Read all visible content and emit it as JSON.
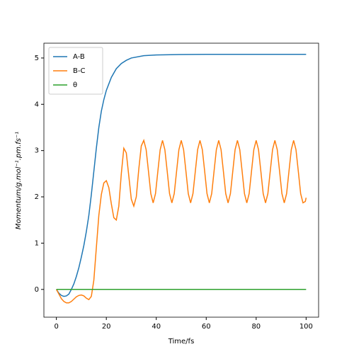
{
  "chart_data": {
    "type": "line",
    "xlabel": "Time/fs",
    "ylabel": "Momentum/g.mol⁻¹.pm.fs⁻¹",
    "xlim": [
      -5,
      105
    ],
    "xticks": [
      0,
      20,
      40,
      60,
      80,
      100
    ],
    "ylim": [
      -0.6,
      5.32
    ],
    "yticks": [
      0,
      1,
      2,
      3,
      4,
      5
    ],
    "legend": "upper left",
    "series": [
      {
        "name": "A-B",
        "color": "#1f77b4",
        "x": [
          0,
          1,
          2,
          3,
          4,
          5,
          6,
          7,
          8,
          9,
          10,
          11,
          12,
          13,
          14,
          15,
          16,
          17,
          18,
          19,
          20,
          22,
          24,
          26,
          28,
          30,
          35,
          40,
          50,
          60,
          100
        ],
        "values": [
          0,
          -0.08,
          -0.13,
          -0.15,
          -0.14,
          -0.1,
          0.0,
          0.12,
          0.28,
          0.47,
          0.7,
          0.95,
          1.25,
          1.6,
          2.05,
          2.55,
          3.05,
          3.5,
          3.85,
          4.1,
          4.3,
          4.58,
          4.77,
          4.88,
          4.95,
          5.0,
          5.05,
          5.065,
          5.075,
          5.08,
          5.08
        ]
      },
      {
        "name": "B-C",
        "color": "#ff7f0e",
        "x": [
          0,
          1,
          2,
          3,
          4,
          5,
          6,
          7,
          8,
          9,
          10,
          11,
          12,
          13,
          14,
          15,
          16,
          17,
          18,
          19,
          20,
          21,
          22,
          23,
          24,
          25,
          26,
          27,
          28,
          29,
          30,
          31,
          32,
          33,
          34,
          35,
          35.94,
          36.88,
          37.81,
          38.75,
          39.69,
          40.63,
          41.56,
          42.5,
          43.44,
          44.38,
          45.31,
          46.25,
          47.19,
          48.13,
          49.06,
          50,
          50.94,
          51.88,
          52.81,
          53.75,
          54.69,
          55.63,
          56.56,
          57.5,
          58.44,
          59.38,
          60.31,
          61.25,
          62.19,
          63.13,
          64.06,
          65,
          65.94,
          66.88,
          67.81,
          68.75,
          69.69,
          70.63,
          71.56,
          72.5,
          73.44,
          74.38,
          75.31,
          76.25,
          77.19,
          78.13,
          79.06,
          80,
          80.94,
          81.88,
          82.81,
          83.75,
          84.69,
          85.63,
          86.56,
          87.5,
          88.44,
          89.38,
          90.31,
          91.25,
          92.19,
          93.13,
          94.06,
          95,
          95.94,
          96.88,
          97.81,
          98.75,
          99.69,
          100
        ],
        "values": [
          0,
          -0.1,
          -0.2,
          -0.26,
          -0.29,
          -0.29,
          -0.26,
          -0.21,
          -0.16,
          -0.13,
          -0.12,
          -0.14,
          -0.19,
          -0.22,
          -0.15,
          0.2,
          0.9,
          1.6,
          2.05,
          2.3,
          2.35,
          2.2,
          1.85,
          1.55,
          1.5,
          1.8,
          2.5,
          3.05,
          2.95,
          2.45,
          1.95,
          1.8,
          2.0,
          2.6,
          3.1,
          3.22,
          3.02,
          2.55,
          2.07,
          1.87,
          2.07,
          2.55,
          3.02,
          3.22,
          3.02,
          2.55,
          2.07,
          1.87,
          2.07,
          2.55,
          3.02,
          3.22,
          3.02,
          2.55,
          2.07,
          1.87,
          2.07,
          2.55,
          3.02,
          3.22,
          3.02,
          2.55,
          2.07,
          1.87,
          2.07,
          2.55,
          3.02,
          3.22,
          3.02,
          2.55,
          2.07,
          1.87,
          2.07,
          2.55,
          3.02,
          3.22,
          3.02,
          2.55,
          2.07,
          1.87,
          2.07,
          2.55,
          3.02,
          3.22,
          3.02,
          2.55,
          2.07,
          1.87,
          2.07,
          2.55,
          3.02,
          3.22,
          3.02,
          2.55,
          2.07,
          1.87,
          2.07,
          2.55,
          3.02,
          3.22,
          3.02,
          2.55,
          2.07,
          1.87,
          1.9,
          1.98
        ]
      },
      {
        "name": "θ",
        "color": "#2ca02c",
        "x": [
          0,
          100
        ],
        "values": [
          0,
          0
        ]
      }
    ]
  }
}
